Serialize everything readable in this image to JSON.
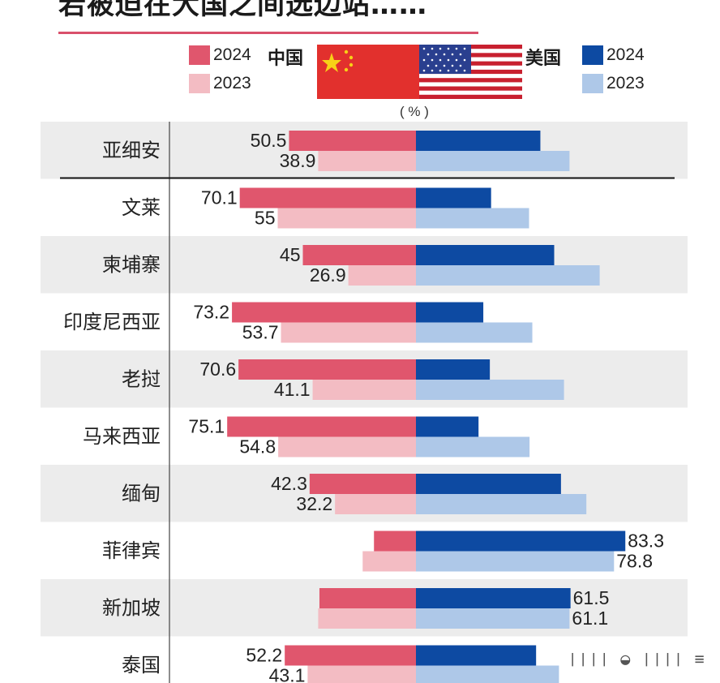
{
  "title": "若被迫在大国之间选边站……",
  "legend": {
    "china_label": "中国",
    "us_label": "美国",
    "years": [
      "2024",
      "2023"
    ]
  },
  "unit": "( % )",
  "colors": {
    "china_2024": "#e0566d",
    "china_2023": "#f3bcc3",
    "us_2024": "#0d4aa2",
    "us_2023": "#aec8e8",
    "row_band": "#ececec"
  },
  "chart_data": {
    "type": "bar",
    "orientation": "diverging-horizontal",
    "xlim": [
      -100,
      100
    ],
    "categories": [
      "亚细安",
      "文莱",
      "柬埔寨",
      "印度尼西亚",
      "老挝",
      "马来西亚",
      "缅甸",
      "菲律宾",
      "新加坡",
      "泰国"
    ],
    "series": [
      {
        "name": "中国 2024",
        "side": "left",
        "values": [
          50.5,
          70.1,
          45,
          73.2,
          70.6,
          75.1,
          42.3,
          16.7,
          38.4,
          52.2
        ],
        "labels": [
          "50.5",
          "70.1",
          "45",
          "73.2",
          "70.6",
          "75.1",
          "42.3",
          "",
          "",
          "52.2"
        ]
      },
      {
        "name": "中国 2023",
        "side": "left",
        "values": [
          38.9,
          55,
          26.9,
          53.7,
          41.1,
          54.8,
          32.2,
          21.2,
          38.9,
          43.1
        ],
        "labels": [
          "38.9",
          "55",
          "26.9",
          "53.7",
          "41.1",
          "54.8",
          "32.2",
          "",
          "",
          "43.1"
        ]
      },
      {
        "name": "美国 2024",
        "side": "right",
        "values": [
          49.5,
          29.9,
          55,
          26.8,
          29.4,
          24.9,
          57.7,
          83.3,
          61.5,
          47.8
        ],
        "labels": [
          "",
          "",
          "",
          "",
          "",
          "",
          "",
          "83.3",
          "61.5",
          ""
        ]
      },
      {
        "name": "美国 2023",
        "side": "right",
        "values": [
          61.1,
          45,
          73.1,
          46.3,
          58.9,
          45.2,
          67.8,
          78.8,
          61.1,
          56.9
        ],
        "labels": [
          "",
          "",
          "",
          "",
          "",
          "",
          "",
          "78.8",
          "61.1",
          ""
        ]
      }
    ]
  },
  "watermark": "❘❘❘❘ ◒ ❘❘❘❘ ≡"
}
